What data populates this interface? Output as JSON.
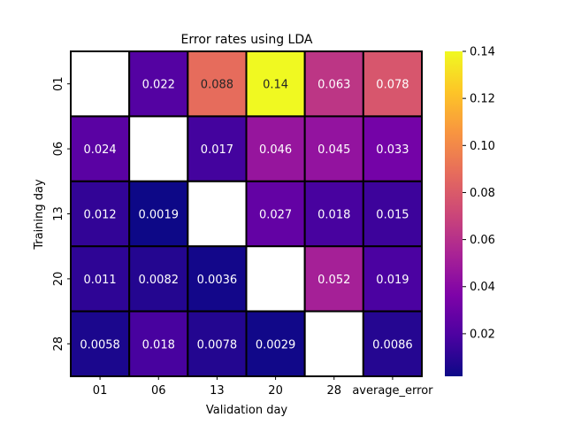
{
  "chart_data": {
    "type": "heatmap",
    "title": "Error rates using LDA",
    "xlabel": "Validation day",
    "ylabel": "Training day",
    "x_categories": [
      "01",
      "06",
      "13",
      "20",
      "28",
      "average_error"
    ],
    "y_categories": [
      "01",
      "06",
      "13",
      "20",
      "28"
    ],
    "values": [
      [
        null,
        0.022,
        0.088,
        0.14,
        0.063,
        0.078
      ],
      [
        0.024,
        null,
        0.017,
        0.046,
        0.045,
        0.033
      ],
      [
        0.012,
        0.0019,
        null,
        0.027,
        0.018,
        0.015
      ],
      [
        0.011,
        0.0082,
        0.0036,
        null,
        0.052,
        0.019
      ],
      [
        0.0058,
        0.018,
        0.0078,
        0.0029,
        null,
        0.0086
      ]
    ],
    "colormap": "plasma",
    "colorbar": {
      "range": [
        0.0019,
        0.14
      ],
      "ticks": [
        "0.02",
        "0.04",
        "0.06",
        "0.08",
        "0.10",
        "0.12",
        "0.14"
      ]
    },
    "cell_border_color": "#000000",
    "missing_cell_color": "#ffffff"
  }
}
